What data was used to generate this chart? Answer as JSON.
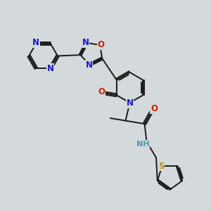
{
  "bg_color": "#d4d9dc",
  "bond_color": "#1a1a1a",
  "bond_width": 1.4,
  "atom_colors": {
    "N": "#1818cc",
    "O": "#cc2000",
    "S": "#b8960a",
    "NH": "#4a9aaa",
    "C": "#1a1a1a"
  },
  "font_size_atom": 8.5,
  "font_size_nh": 8.0
}
